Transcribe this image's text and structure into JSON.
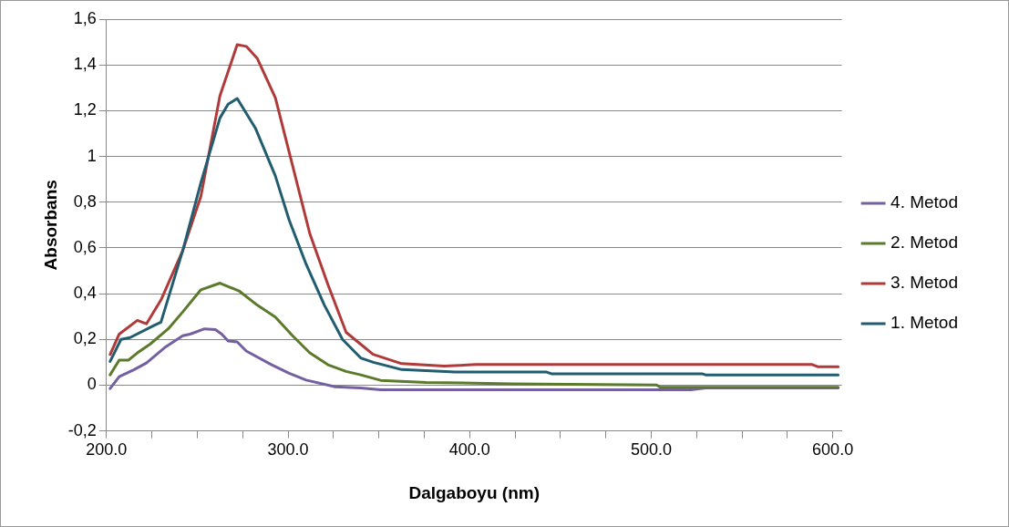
{
  "chart_data": {
    "type": "line",
    "xlabel": "Dalgaboyu (nm)",
    "ylabel": "Absorbans",
    "xlim": [
      200,
      605
    ],
    "ylim": [
      -0.2,
      1.6
    ],
    "xticks": [
      {
        "value": 200,
        "label": "200.0"
      },
      {
        "value": 225,
        "label": null
      },
      {
        "value": 250,
        "label": null
      },
      {
        "value": 275,
        "label": null
      },
      {
        "value": 300,
        "label": "300.0"
      },
      {
        "value": 325,
        "label": null
      },
      {
        "value": 350,
        "label": null
      },
      {
        "value": 375,
        "label": null
      },
      {
        "value": 400,
        "label": "400.0"
      },
      {
        "value": 425,
        "label": null
      },
      {
        "value": 450,
        "label": null
      },
      {
        "value": 475,
        "label": null
      },
      {
        "value": 500,
        "label": "500.0"
      },
      {
        "value": 525,
        "label": null
      },
      {
        "value": 550,
        "label": null
      },
      {
        "value": 575,
        "label": null
      },
      {
        "value": 600,
        "label": "600.0"
      }
    ],
    "yticks": [
      {
        "value": -0.2,
        "label": "-0,2"
      },
      0,
      {
        "value": 0.2,
        "label": "0,2"
      },
      {
        "value": 0.4,
        "label": "0,4"
      },
      {
        "value": 0.6,
        "label": "0,6"
      },
      {
        "value": 0.8,
        "label": "0,8"
      },
      1,
      {
        "value": 1.2,
        "label": "1,2"
      },
      {
        "value": 1.4,
        "label": "1,4"
      },
      {
        "value": 1.6,
        "label": "1,6"
      }
    ],
    "grid": "y",
    "legend": "right",
    "marker": "none",
    "line_style": "solid",
    "series": [
      {
        "name": "4. Metod",
        "color": "#7460a0",
        "x": [
          202,
          207,
          215,
          222,
          232,
          242,
          246,
          254,
          260,
          263.5,
          267,
          272,
          277,
          291,
          300.6,
          310,
          326,
          340,
          351,
          400,
          450,
          522,
          530,
          603
        ],
        "values": [
          -0.015,
          0.037,
          0.067,
          0.097,
          0.164,
          0.216,
          0.223,
          0.246,
          0.243,
          0.223,
          0.193,
          0.189,
          0.149,
          0.089,
          0.052,
          0.022,
          -0.007,
          -0.012,
          -0.02,
          -0.02,
          -0.02,
          -0.02,
          -0.012,
          -0.012
        ]
      },
      {
        "name": "2. Metod",
        "color": "#5b7a2b",
        "x": [
          202,
          207,
          212,
          217,
          224,
          234,
          242,
          252,
          262.5,
          273,
          283,
          293,
          302.5,
          312,
          322,
          332,
          340,
          351,
          376,
          423,
          503,
          505,
          603
        ],
        "values": [
          0.045,
          0.109,
          0.109,
          0.141,
          0.179,
          0.246,
          0.32,
          0.417,
          0.446,
          0.412,
          0.35,
          0.298,
          0.216,
          0.141,
          0.089,
          0.06,
          0.045,
          0.021,
          0.012,
          0.006,
          0.001,
          -0.009,
          -0.009
        ]
      },
      {
        "name": "3. Metod",
        "color": "#b03a3a",
        "x": [
          202,
          207,
          217,
          222,
          230,
          242,
          252,
          262.5,
          272,
          277,
          283,
          293,
          302.5,
          312,
          322,
          332,
          340,
          346.8,
          362.6,
          386,
          403.5,
          588.7,
          592,
          603
        ],
        "values": [
          0.134,
          0.223,
          0.283,
          0.268,
          0.372,
          0.588,
          0.826,
          1.265,
          1.488,
          1.481,
          1.429,
          1.257,
          0.96,
          0.662,
          0.439,
          0.231,
          0.179,
          0.135,
          0.094,
          0.083,
          0.09,
          0.09,
          0.08,
          0.08
        ]
      },
      {
        "name": "1. Metod",
        "color": "#215d6e",
        "x": [
          202,
          208,
          213,
          226,
          230,
          242,
          252,
          262.5,
          267,
          272,
          282,
          293,
          300.6,
          310,
          320,
          330,
          340,
          347,
          362.6,
          392,
          442.5,
          445,
          528,
          530,
          603
        ],
        "values": [
          0.104,
          0.2,
          0.208,
          0.26,
          0.275,
          0.588,
          0.885,
          1.168,
          1.228,
          1.253,
          1.124,
          0.915,
          0.722,
          0.528,
          0.35,
          0.2,
          0.119,
          0.1,
          0.068,
          0.057,
          0.057,
          0.05,
          0.05,
          0.045,
          0.045
        ]
      }
    ]
  }
}
